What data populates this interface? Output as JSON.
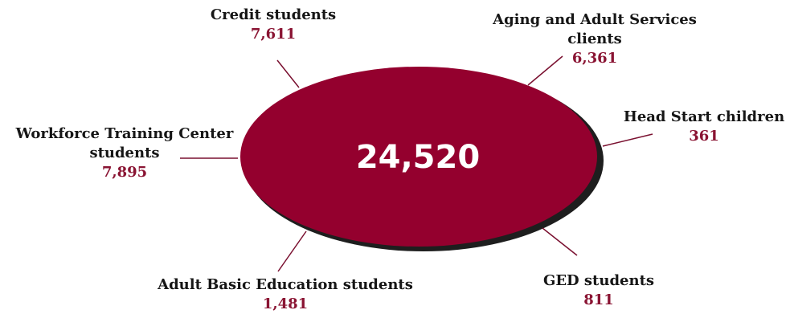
{
  "colors": {
    "ellipse_fill": "#94002e",
    "ellipse_shadow": "#1e1e1e",
    "value_text": "#8a1433",
    "label_text": "#161616",
    "connector": "#7a1030"
  },
  "center": {
    "total": "24,520"
  },
  "segments": [
    {
      "name": "Credit students",
      "value": "7,611"
    },
    {
      "name": "Aging and Adult Services clients",
      "value": "6,361"
    },
    {
      "name": "Head Start children",
      "value": "361"
    },
    {
      "name": "GED students",
      "value": "811"
    },
    {
      "name": "Adult Basic Education students",
      "value": "1,481"
    },
    {
      "name": "Workforce Training Center students",
      "value": "7,895"
    }
  ]
}
